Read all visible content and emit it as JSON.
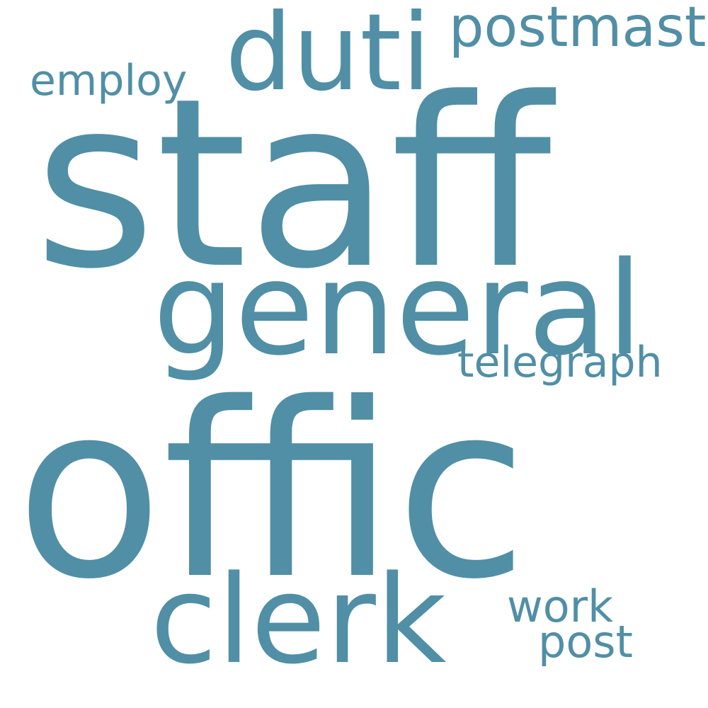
{
  "word_cloud": {
    "color": "#508fa6",
    "background": "#ffffff",
    "words": {
      "staff": "staff",
      "offic": "offic",
      "general": "general",
      "clerk": "clerk",
      "duti": "duti",
      "postmast": "postmast",
      "employ": "employ",
      "telegraph": "telegraph",
      "work": "work",
      "post": "post"
    }
  }
}
